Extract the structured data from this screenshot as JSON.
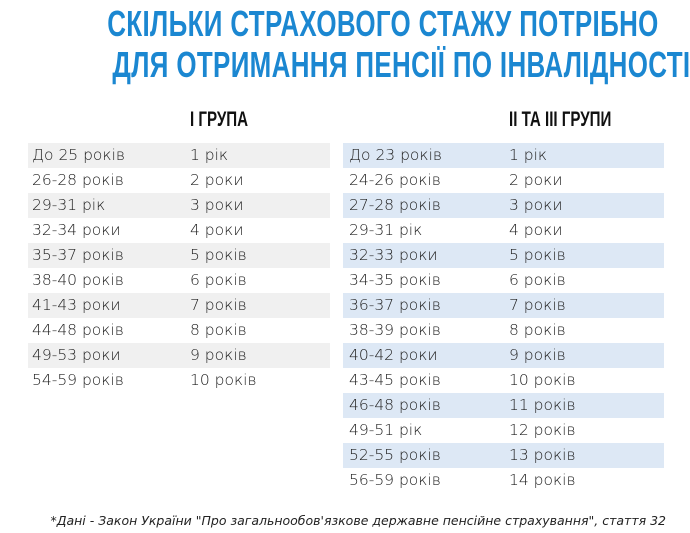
{
  "title": {
    "line1": "СКІЛЬКИ СТРАХОВОГО СТАЖУ ПОТРІБНО",
    "line2": "ДЛЯ ОТРИМАННЯ ПЕНСІЇ ПО ІНВАЛІДНОСТІ"
  },
  "colors": {
    "title": "#1b87d1",
    "left_stripe": "#f0f0f0",
    "right_stripe": "#dde8f5"
  },
  "group1": {
    "header": "І ГРУПА",
    "rows": [
      {
        "age": "До 25 років",
        "stazh": "1 рік"
      },
      {
        "age": "26-28 років",
        "stazh": "2 роки"
      },
      {
        "age": "29-31 рік",
        "stazh": "3 роки"
      },
      {
        "age": "32-34 роки",
        "stazh": "4 роки"
      },
      {
        "age": "35-37 років",
        "stazh": "5 років"
      },
      {
        "age": "38-40 років",
        "stazh": "6 років"
      },
      {
        "age": "41-43 роки",
        "stazh": "7 років"
      },
      {
        "age": "44-48 років",
        "stazh": "8 років"
      },
      {
        "age": "49-53 роки",
        "stazh": "9 років"
      },
      {
        "age": "54-59 років",
        "stazh": "10 років"
      }
    ]
  },
  "group23": {
    "header": "ІІ ТА ІІІ ГРУПИ",
    "rows": [
      {
        "age": "До 23 років",
        "stazh": "1 рік"
      },
      {
        "age": "24-26 років",
        "stazh": "2 роки"
      },
      {
        "age": "27-28 років",
        "stazh": "3 роки"
      },
      {
        "age": "29-31 рік",
        "stazh": "4 роки"
      },
      {
        "age": "32-33 роки",
        "stazh": "5 років"
      },
      {
        "age": "34-35 років",
        "stazh": "6 років"
      },
      {
        "age": "36-37 років",
        "stazh": "7 років"
      },
      {
        "age": "38-39 років",
        "stazh": "8 років"
      },
      {
        "age": "40-42 роки",
        "stazh": "9 років"
      },
      {
        "age": "43-45 років",
        "stazh": "10 років"
      },
      {
        "age": "46-48 років",
        "stazh": "11 років"
      },
      {
        "age": "49-51 рік",
        "stazh": "12 років"
      },
      {
        "age": "52-55 років",
        "stazh": "13 років"
      },
      {
        "age": "56-59 років",
        "stazh": "14 років"
      }
    ]
  },
  "footnote": "*Дані - Закон України \"Про загальнообов'язкове державне пенсійне страхування\", стаття 32"
}
